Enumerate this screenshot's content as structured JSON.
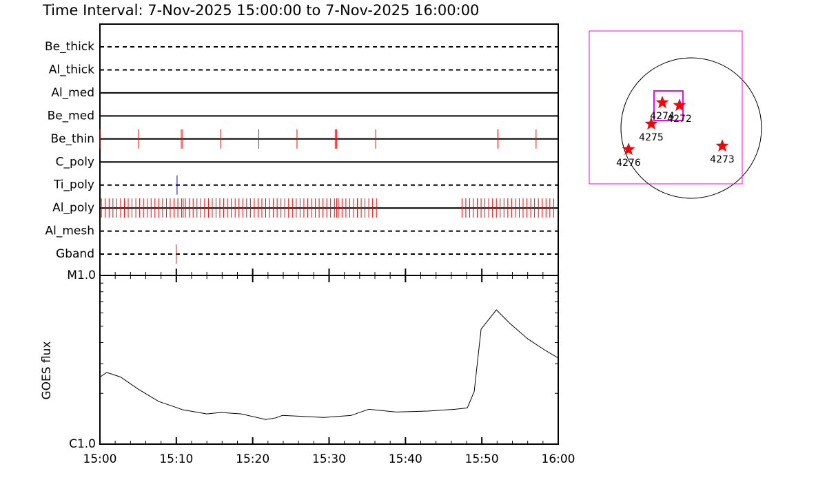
{
  "chart_data": [
    {
      "type": "timeline",
      "title": "Time Interval:  7-Nov-2025 15:00:00 to  7-Nov-2025 16:00:00",
      "xlim": [
        0,
        60
      ],
      "rows": [
        {
          "name": "Be_thick",
          "style": "dashed",
          "color": "#ff0000",
          "events": []
        },
        {
          "name": "Al_thick",
          "style": "dashed",
          "color": "#ff0000",
          "events": []
        },
        {
          "name": "Al_med",
          "style": "solid",
          "color": "#ff0000",
          "events": []
        },
        {
          "name": "Be_med",
          "style": "solid",
          "color": "#ff0000",
          "events": []
        },
        {
          "name": "Be_thin",
          "style": "solid",
          "color": "#ff0000",
          "events": [
            0,
            5.05,
            10.65,
            10.83,
            15.8,
            20.8,
            25.8,
            30.8,
            31.0,
            36.1,
            52.1,
            57.1
          ]
        },
        {
          "name": "C_poly",
          "style": "solid",
          "color": "#ff0000",
          "events": []
        },
        {
          "name": "Ti_poly",
          "style": "dashed",
          "color": "#0000c0",
          "events": [
            10.1
          ]
        },
        {
          "name": "Al_poly",
          "style": "solid",
          "color": "#ff0000",
          "events": [
            0.2,
            0.7,
            1.2,
            1.7,
            2.2,
            2.7,
            3.2,
            3.7,
            4.2,
            4.7,
            5.2,
            5.7,
            6.2,
            6.7,
            7.2,
            7.7,
            8.2,
            8.7,
            9.2,
            9.7,
            10.2,
            10.7,
            10.9,
            11.2,
            11.7,
            12.2,
            12.7,
            13.2,
            13.7,
            14.2,
            14.7,
            15.2,
            15.7,
            16.2,
            16.7,
            17.2,
            17.7,
            18.2,
            18.7,
            19.2,
            19.7,
            20.2,
            20.7,
            21.2,
            21.7,
            22.2,
            22.7,
            23.2,
            23.7,
            24.2,
            24.7,
            25.2,
            25.7,
            26.2,
            26.7,
            27.2,
            27.7,
            28.2,
            28.7,
            29.2,
            29.7,
            30.2,
            30.7,
            31.0,
            31.2,
            31.7,
            32.2,
            32.7,
            33.2,
            33.7,
            34.2,
            34.7,
            35.2,
            35.7,
            36.2,
            47.4,
            47.9,
            48.4,
            48.9,
            49.4,
            49.9,
            50.4,
            50.9,
            51.4,
            51.9,
            52.4,
            52.9,
            53.4,
            53.9,
            54.4,
            54.9,
            55.4,
            55.9,
            56.4,
            56.9,
            57.4,
            57.9,
            58.4,
            58.9,
            59.4
          ]
        },
        {
          "name": "Al_mesh",
          "style": "dashed",
          "color": "#ff0000",
          "events": []
        },
        {
          "name": "Gband",
          "style": "dashed",
          "color": "#ff0000",
          "events": [
            10.0
          ]
        }
      ]
    },
    {
      "type": "line",
      "ylabel": "GOES flux",
      "log_y": true,
      "color": "#000000",
      "xlim": [
        0,
        60
      ],
      "xticks": [
        {
          "value": 0,
          "label": "15:00"
        },
        {
          "value": 10,
          "label": "15:10"
        },
        {
          "value": 20,
          "label": "15:20"
        },
        {
          "value": 30,
          "label": "15:30"
        },
        {
          "value": 40,
          "label": "15:40"
        },
        {
          "value": 50,
          "label": "15:50"
        },
        {
          "value": 60,
          "label": "16:00"
        }
      ],
      "xminorticks": [
        2,
        4,
        6,
        8,
        12,
        14,
        16,
        18,
        22,
        24,
        26,
        28,
        32,
        34,
        36,
        38,
        42,
        44,
        46,
        48,
        52,
        54,
        56,
        58
      ],
      "ylim": [
        1e-06,
        1e-05
      ],
      "yticks": [
        {
          "value": 1e-06,
          "label": "C1.0"
        },
        {
          "value": 1e-05,
          "label": "M1.0"
        }
      ],
      "yminorticks": [
        2e-06,
        3e-06,
        4e-06,
        5e-06,
        6e-06,
        7e-06,
        8e-06,
        9e-06
      ],
      "x": [
        0,
        0.9,
        2.7,
        5,
        7.7,
        9.5,
        10.8,
        14,
        15.8,
        18.5,
        21.7,
        23,
        23.9,
        26.6,
        29.3,
        32.9,
        35.2,
        38.8,
        42.9,
        46.5,
        48.1,
        49,
        49.9,
        51.9,
        53.7,
        56,
        58.2,
        60
      ],
      "values": [
        2.5e-06,
        2.66e-06,
        2.5e-06,
        2.12e-06,
        1.79e-06,
        1.68e-06,
        1.6e-06,
        1.51e-06,
        1.54e-06,
        1.51e-06,
        1.4e-06,
        1.43e-06,
        1.48e-06,
        1.46e-06,
        1.44e-06,
        1.48e-06,
        1.61e-06,
        1.55e-06,
        1.57e-06,
        1.61e-06,
        1.64e-06,
        2.05e-06,
        4.8e-06,
        6.25e-06,
        5.18e-06,
        4.21e-06,
        3.62e-06,
        3.24e-06
      ]
    }
  ],
  "map": {
    "box_color": "#ff00ff",
    "star_color": "#ff0000",
    "regions": [
      "4274",
      "4272",
      "4275",
      "4276",
      "4273"
    ]
  }
}
